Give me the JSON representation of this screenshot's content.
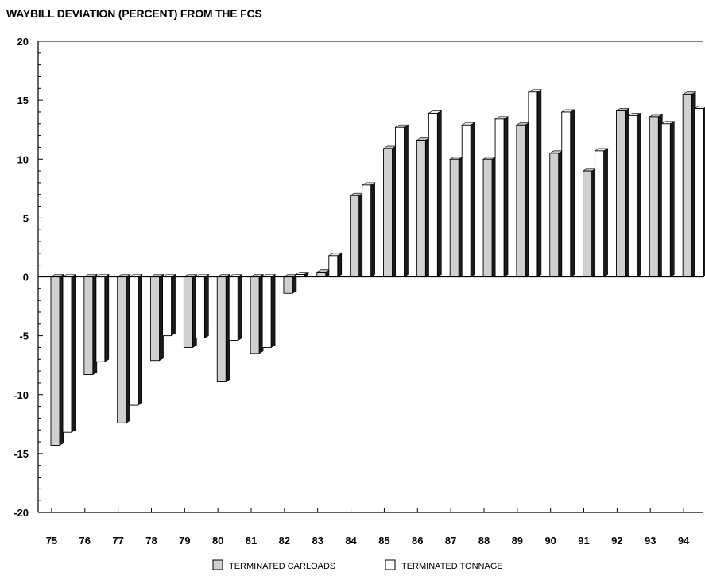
{
  "chart_data": {
    "type": "bar",
    "title": "WAYBILL DEVIATION (PERCENT) FROM THE FCS",
    "xlabel": "",
    "ylabel": "",
    "ylim": [
      -20,
      20
    ],
    "yticks": [
      20,
      15,
      10,
      5,
      0,
      -5,
      -10,
      -15,
      -20
    ],
    "categories": [
      "75",
      "76",
      "77",
      "78",
      "79",
      "80",
      "81",
      "82",
      "83",
      "84",
      "85",
      "86",
      "87",
      "88",
      "89",
      "90",
      "91",
      "92",
      "93",
      "94"
    ],
    "series": [
      {
        "name": "TERMINATED CARLOADS",
        "color": "#d0d0d0",
        "values": [
          -14.3,
          -8.3,
          -12.4,
          -7.1,
          -6.0,
          -8.9,
          -6.5,
          -1.4,
          0.4,
          6.9,
          10.9,
          11.6,
          10.0,
          10.0,
          12.9,
          10.5,
          9.0,
          14.1,
          13.6,
          15.5
        ]
      },
      {
        "name": "TERMINATED TONNAGE",
        "color": "#ffffff",
        "values": [
          -13.2,
          -7.2,
          -10.9,
          -5.0,
          -5.2,
          -5.4,
          -6.0,
          0.2,
          1.8,
          7.8,
          12.7,
          13.9,
          12.9,
          13.4,
          15.7,
          14.0,
          10.7,
          13.7,
          13.0,
          14.3
        ]
      }
    ],
    "grid": false,
    "legend_position": "bottom-center"
  }
}
